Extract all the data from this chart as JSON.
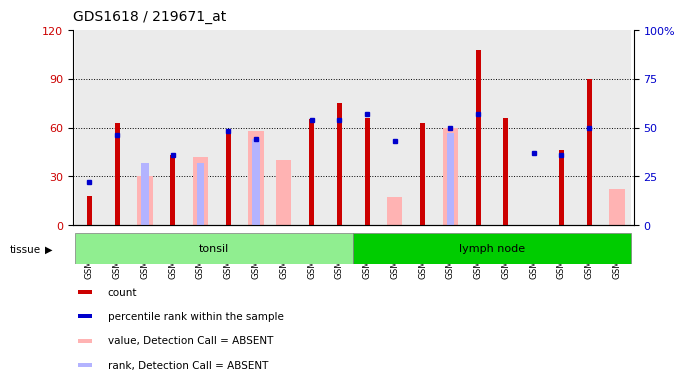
{
  "title": "GDS1618 / 219671_at",
  "samples": [
    "GSM51381",
    "GSM51382",
    "GSM51383",
    "GSM51384",
    "GSM51385",
    "GSM51386",
    "GSM51387",
    "GSM51388",
    "GSM51389",
    "GSM51390",
    "GSM51371",
    "GSM51372",
    "GSM51373",
    "GSM51374",
    "GSM51375",
    "GSM51376",
    "GSM51377",
    "GSM51378",
    "GSM51379",
    "GSM51380"
  ],
  "count": [
    18,
    63,
    0,
    43,
    0,
    57,
    0,
    0,
    65,
    75,
    66,
    0,
    63,
    0,
    108,
    66,
    0,
    46,
    90,
    0
  ],
  "rank": [
    22,
    46,
    0,
    36,
    0,
    48,
    44,
    0,
    54,
    54,
    57,
    43,
    0,
    50,
    57,
    0,
    37,
    36,
    50,
    0
  ],
  "absent_value": [
    0,
    0,
    30,
    0,
    42,
    0,
    58,
    40,
    0,
    0,
    0,
    17,
    0,
    60,
    0,
    0,
    0,
    0,
    0,
    22
  ],
  "absent_rank": [
    0,
    0,
    32,
    0,
    32,
    0,
    44,
    0,
    0,
    0,
    0,
    0,
    0,
    47,
    0,
    0,
    0,
    0,
    0,
    0
  ],
  "tonsil_count": 10,
  "lymphnode_count": 10,
  "ylim_left": [
    0,
    120
  ],
  "ylim_right": [
    0,
    100
  ],
  "yticks_left": [
    0,
    30,
    60,
    90,
    120
  ],
  "yticks_right": [
    0,
    25,
    50,
    75,
    100
  ],
  "left_color": "#cc0000",
  "right_color": "#0000cc",
  "absent_value_color": "#ffb3b3",
  "absent_rank_color": "#b3b3ff",
  "rank_color": "#0000cc",
  "tissue_tonsil": "tonsil",
  "tissue_lymphnode": "lymph node",
  "tissue_bg_tonsil": "#90ee90",
  "tissue_bg_lymph": "#00cc00",
  "legend_items": [
    {
      "label": "count",
      "color": "#cc0000"
    },
    {
      "label": "percentile rank within the sample",
      "color": "#0000cc"
    },
    {
      "label": "value, Detection Call = ABSENT",
      "color": "#ffb3b3"
    },
    {
      "label": "rank, Detection Call = ABSENT",
      "color": "#b3b3ff"
    }
  ]
}
